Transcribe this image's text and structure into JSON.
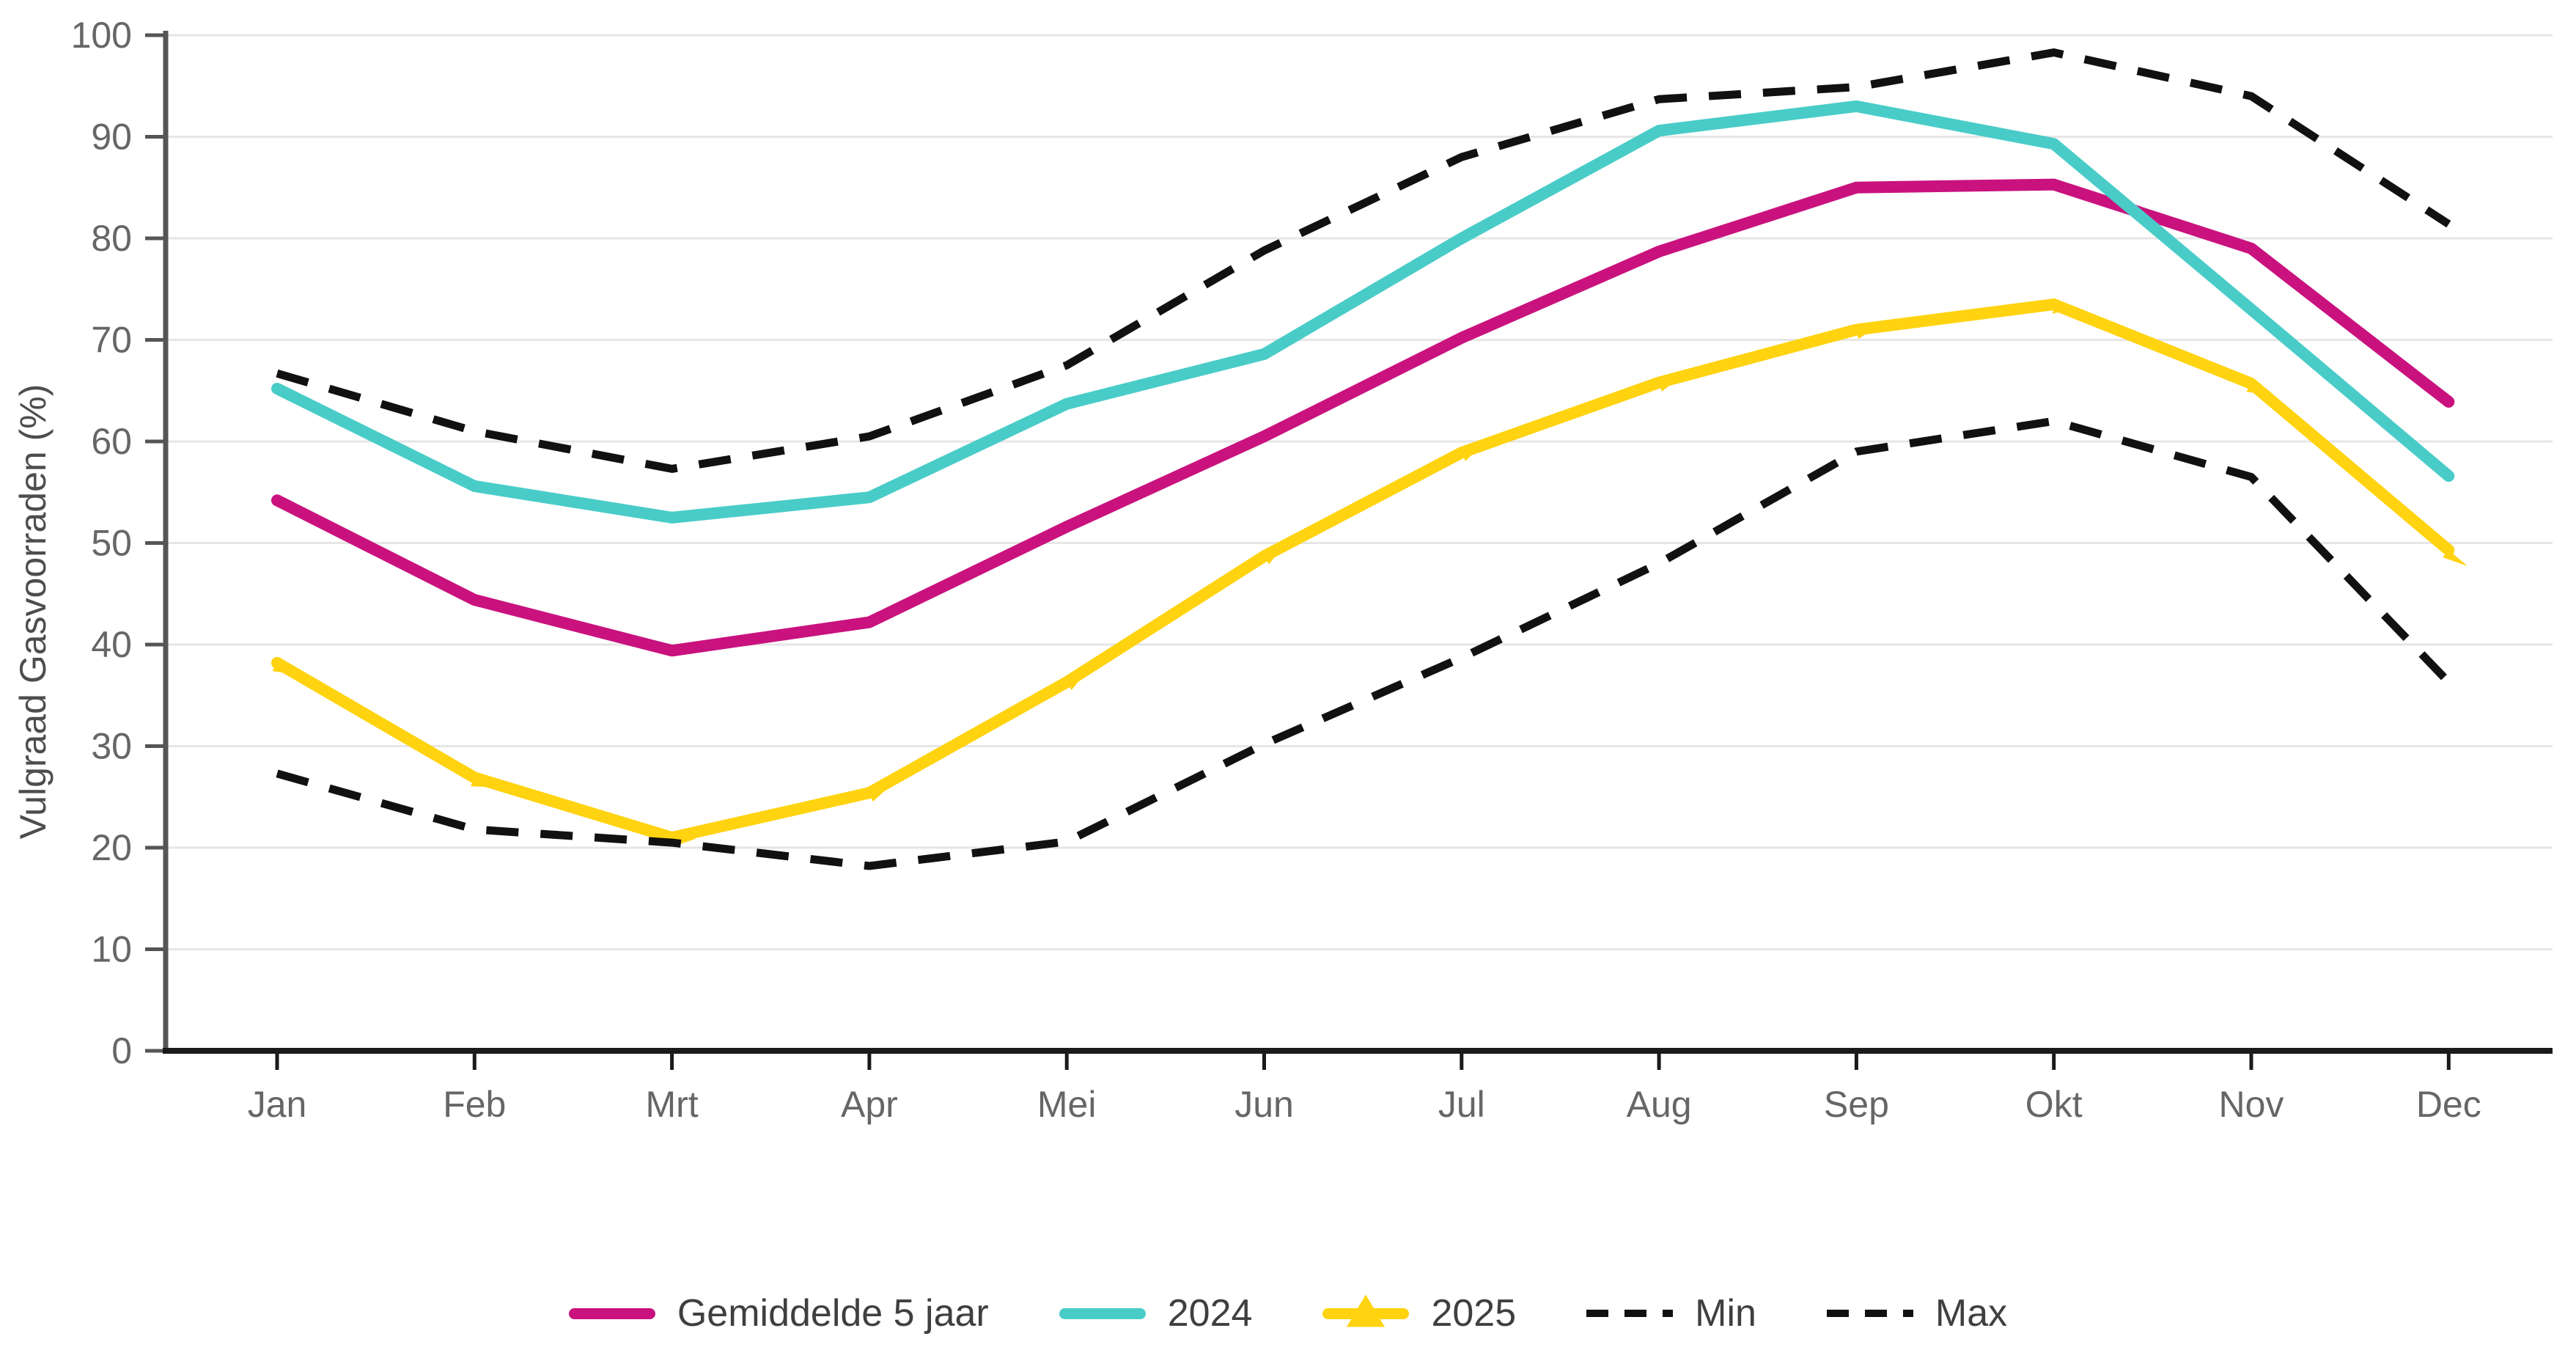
{
  "chart_data": {
    "type": "line",
    "title": "",
    "xlabel": "",
    "ylabel": "Vulgraad Gasvoorraden (%)",
    "ylim": [
      0,
      100
    ],
    "yticks": [
      0,
      10,
      20,
      30,
      40,
      50,
      60,
      70,
      80,
      90,
      100
    ],
    "grid": "horizontal",
    "legend_position": "bottom",
    "categories": [
      "Jan",
      "Feb",
      "Mrt",
      "Apr",
      "Mei",
      "Jun",
      "Jul",
      "Aug",
      "Sep",
      "Okt",
      "Nov",
      "Dec"
    ],
    "series": [
      {
        "name": "Gemiddelde 5 jaar",
        "color": "#C9127E",
        "style": "solid",
        "marker": "none",
        "values": [
          54.2,
          44.4,
          39.4,
          42.2,
          51.6,
          60.5,
          70.2,
          78.7,
          85.0,
          85.3,
          79.0,
          63.9
        ]
      },
      {
        "name": "2024",
        "color": "#49CCC8",
        "style": "solid",
        "marker": "none",
        "values": [
          65.2,
          55.6,
          52.5,
          54.5,
          63.7,
          68.6,
          80.0,
          90.6,
          93.0,
          89.3,
          73.0,
          56.6
        ]
      },
      {
        "name": "2025",
        "color": "#FFD30F",
        "style": "solid",
        "marker": "triangle",
        "values": [
          38.2,
          26.9,
          21.0,
          25.4,
          36.3,
          48.7,
          58.9,
          65.8,
          71.0,
          73.5,
          65.7,
          49.3
        ]
      },
      {
        "name": "Min",
        "color": "#111111",
        "style": "dashed",
        "marker": "none",
        "values": [
          27.3,
          21.8,
          20.5,
          18.2,
          20.6,
          30.2,
          38.7,
          48.0,
          59.0,
          62.0,
          56.5,
          36.3
        ]
      },
      {
        "name": "Max",
        "color": "#111111",
        "style": "dashed",
        "marker": "none",
        "values": [
          66.7,
          61.0,
          57.3,
          60.5,
          67.5,
          78.8,
          88.0,
          93.7,
          94.9,
          98.3,
          94.0,
          81.4
        ]
      }
    ]
  },
  "colors": {
    "axis_line_x": "#1a1a1a",
    "axis_line_y": "#555555",
    "gridline": "#e6e6e6",
    "tick_text": "#666666",
    "legend_text": "#3f3f3f",
    "background": "#ffffff"
  }
}
